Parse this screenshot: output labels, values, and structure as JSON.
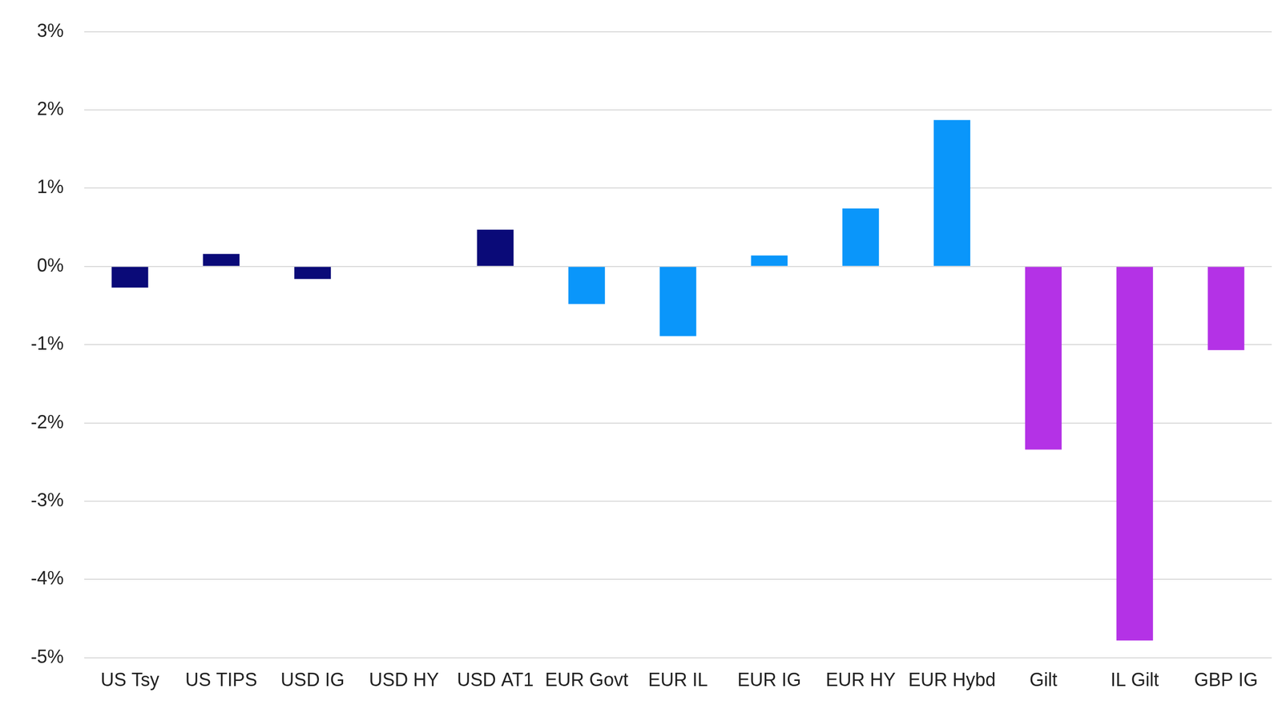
{
  "chart_data": {
    "type": "bar",
    "categories": [
      "US Tsy",
      "US TIPS",
      "USD IG",
      "USD HY",
      "USD AT1",
      "EUR Govt",
      "EUR IL",
      "EUR IG",
      "EUR HY",
      "EUR Hybd",
      "Gilt",
      "IL Gilt",
      "GBP IG"
    ],
    "values": [
      -0.27,
      0.16,
      -0.16,
      0,
      0.47,
      -0.48,
      -0.89,
      0.14,
      0.74,
      1.87,
      -2.34,
      -4.78,
      -1.07
    ],
    "colors": [
      "#0a0a78",
      "#0a0a78",
      "#0a0a78",
      "#0a0a78",
      "#0a0a78",
      "#0a96fa",
      "#0a96fa",
      "#0a96fa",
      "#0a96fa",
      "#0a96fa",
      "#b432e6",
      "#b432e6",
      "#b432e6"
    ],
    "ylim": [
      -5,
      3
    ],
    "yticks": [
      {
        "value": -5,
        "label": "-5%"
      },
      {
        "value": -4,
        "label": "-4%"
      },
      {
        "value": -3,
        "label": "-3%"
      },
      {
        "value": -2,
        "label": "-2%"
      },
      {
        "value": -1,
        "label": "-1%"
      },
      {
        "value": 0,
        "label": "0%"
      },
      {
        "value": 1,
        "label": "1%"
      },
      {
        "value": 2,
        "label": "2%"
      },
      {
        "value": 3,
        "label": "3%"
      }
    ],
    "grid": true
  }
}
